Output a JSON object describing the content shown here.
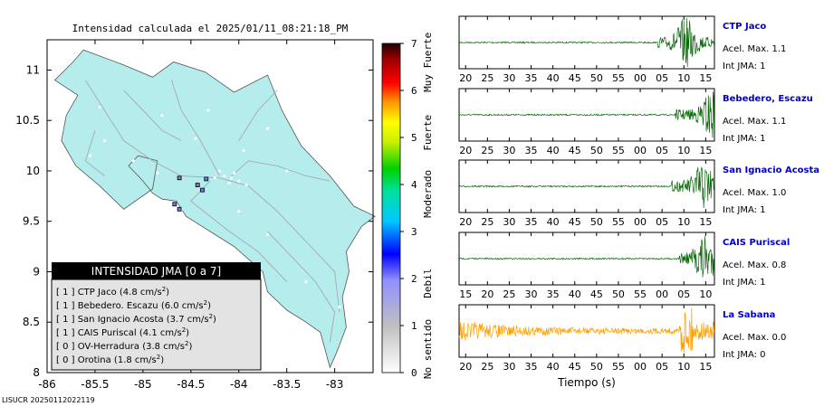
{
  "map": {
    "title": "Intensidad calculada el 2025/01/11_08:21:18_PM",
    "xlim": [
      -86,
      -82.6
    ],
    "ylim": [
      8,
      11.3
    ],
    "xticks": [
      -86,
      -85.5,
      -85,
      -84.5,
      -84,
      -83.5,
      -83
    ],
    "yticks": [
      8,
      8.5,
      9,
      9.5,
      10,
      10.5,
      11
    ],
    "xtick_labels": [
      "-86",
      "-85.5",
      "-85",
      "-84.5",
      "-84",
      "-83.5",
      "-83"
    ],
    "ytick_labels": [
      "8",
      "8.5",
      "9",
      "9.5",
      "10",
      "10.5",
      "11"
    ],
    "land_color": "#b5ecec",
    "legend": {
      "header": "INTENSIDAD JMA [0 a 7]",
      "entries": [
        {
          "jma": "[ 1 ]",
          "label": "CTP Jaco",
          "value": "(4.8 cm/s",
          "sup": "2",
          "close": ")"
        },
        {
          "jma": "[ 1 ]",
          "label": "Bebedero. Escazu",
          "value": "(6.0 cm/s",
          "sup": "2",
          "close": ")"
        },
        {
          "jma": "[ 1 ]",
          "label": "San Ignacio Acosta",
          "value": "(3.7 cm/s",
          "sup": "2",
          "close": ")"
        },
        {
          "jma": "[ 1 ]",
          "label": "CAIS Puriscal",
          "value": "(4.1 cm/s",
          "sup": "2",
          "close": ")"
        },
        {
          "jma": "[ 0 ]",
          "label": "OV-Herradura",
          "value": "(3.8 cm/s",
          "sup": "2",
          "close": ")"
        },
        {
          "jma": "[ 0 ]",
          "label": "Orotina",
          "value": "(1.8 cm/s",
          "sup": "2",
          "close": ")"
        }
      ]
    },
    "stations": [
      {
        "lon": -84.62,
        "lat": 9.93
      },
      {
        "lon": -84.43,
        "lat": 9.86
      },
      {
        "lon": -84.38,
        "lat": 9.81
      },
      {
        "lon": -84.34,
        "lat": 9.92
      },
      {
        "lon": -84.67,
        "lat": 9.67
      },
      {
        "lon": -84.62,
        "lat": 9.62
      }
    ]
  },
  "colorbar": {
    "min": 0,
    "max": 7,
    "ticks": [
      "0",
      "1",
      "2",
      "3",
      "4",
      "5",
      "6",
      "7"
    ],
    "labels": [
      {
        "text": "No sentido",
        "at": 0.5
      },
      {
        "text": "Debil",
        "at": 1.9
      },
      {
        "text": "Moderado",
        "at": 3.8
      },
      {
        "text": "Fuerte",
        "at": 5.1
      },
      {
        "text": "Muy Fuerte",
        "at": 6.6
      }
    ]
  },
  "chart_data": {
    "type": "line",
    "title": "Intensidad calculada el 2025/01/11_08:21:18_PM",
    "xlabel": "Tiempo (s)",
    "panels": [
      {
        "name": "CTP Jaco",
        "acel": "Acel. Max. 1.1",
        "jma": "Int JMA: 1",
        "color": "#0a6b0a",
        "ticks": [
          "20",
          "25",
          "30",
          "35",
          "40",
          "45",
          "50",
          "55",
          "00",
          "05",
          "10",
          "15"
        ],
        "first_tick": 20,
        "x_range": [
          18.5,
          77
        ],
        "event_start": 64,
        "peak": 70.5
      },
      {
        "name": "Bebedero, Escazu",
        "acel": "Acel. Max. 1.1",
        "jma": "Int JMA: 1",
        "color": "#0a6b0a",
        "ticks": [
          "20",
          "25",
          "30",
          "35",
          "40",
          "45",
          "50",
          "55",
          "00",
          "05",
          "10",
          "15"
        ],
        "first_tick": 20,
        "x_range": [
          18.5,
          77
        ],
        "event_start": 68,
        "peak": 76.5
      },
      {
        "name": "San Ignacio Acosta",
        "acel": "Acel. Max. 1.0",
        "jma": "Int JMA: 1",
        "color": "#0a6b0a",
        "ticks": [
          "20",
          "25",
          "30",
          "35",
          "40",
          "45",
          "50",
          "55",
          "00",
          "05",
          "10",
          "15"
        ],
        "first_tick": 20,
        "x_range": [
          18.5,
          77
        ],
        "event_start": 67,
        "peak": 74.5
      },
      {
        "name": "CAIS Puriscal",
        "acel": "Acel. Max. 0.8",
        "jma": "Int JMA: 1",
        "color": "#0a6b0a",
        "ticks": [
          "15",
          "20",
          "25",
          "30",
          "35",
          "40",
          "45",
          "50",
          "55",
          "00",
          "05",
          "10"
        ],
        "first_tick": 15,
        "x_range": [
          13.5,
          72
        ],
        "event_start": 64,
        "peak": 70
      },
      {
        "name": "La Sabana",
        "acel": "Acel. Max. 0.0",
        "jma": "Int JMA: 0",
        "color": "#ff9f00",
        "ticks": [
          "20",
          "25",
          "30",
          "35",
          "40",
          "45",
          "50",
          "55",
          "00",
          "05",
          "10",
          "15"
        ],
        "first_tick": 20,
        "x_range": [
          18.5,
          77
        ],
        "event_start": 70,
        "peak": 70.5,
        "noisy": true
      }
    ]
  },
  "footer": "LISUCR 20250112022119"
}
